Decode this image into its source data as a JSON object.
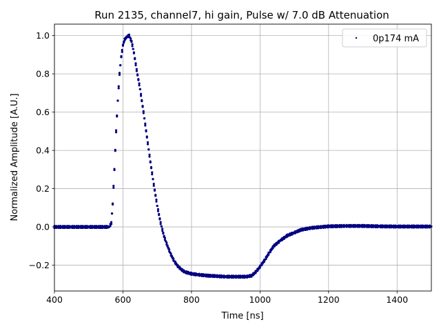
{
  "chart_data": {
    "type": "scatter",
    "title": "Run 2135, channel7, hi gain, Pulse w/ 7.0 dB Attenuation",
    "xlabel": "Time [ns]",
    "ylabel": "Normalized Amplitude [A.U.]",
    "xlim": [
      400,
      1500
    ],
    "ylim": [
      -0.335,
      1.06
    ],
    "xticks": [
      400,
      600,
      800,
      1000,
      1200,
      1400
    ],
    "yticks": [
      -0.2,
      0.0,
      0.2,
      0.4,
      0.6,
      0.8,
      1.0
    ],
    "xtick_labels": [
      "400",
      "600",
      "800",
      "1000",
      "1200",
      "1400"
    ],
    "ytick_labels": [
      "−0.2",
      "0.0",
      "0.2",
      "0.4",
      "0.6",
      "0.8",
      "1.0"
    ],
    "grid": true,
    "legend_position": "top-right",
    "marker_color": "#000080",
    "series": [
      {
        "name": "0p174 mA",
        "points": [
          [
            400,
            0.0
          ],
          [
            450,
            0.0
          ],
          [
            500,
            0.0
          ],
          [
            540,
            0.0
          ],
          [
            560,
            0.0
          ],
          [
            566,
            0.02
          ],
          [
            570,
            0.12
          ],
          [
            575,
            0.3
          ],
          [
            580,
            0.5
          ],
          [
            585,
            0.66
          ],
          [
            590,
            0.8
          ],
          [
            595,
            0.89
          ],
          [
            600,
            0.95
          ],
          [
            605,
            0.98
          ],
          [
            612,
            0.995
          ],
          [
            618,
            1.0
          ],
          [
            625,
            0.97
          ],
          [
            632,
            0.91
          ],
          [
            640,
            0.82
          ],
          [
            650,
            0.72
          ],
          [
            660,
            0.6
          ],
          [
            670,
            0.47
          ],
          [
            680,
            0.34
          ],
          [
            690,
            0.22
          ],
          [
            700,
            0.11
          ],
          [
            710,
            0.02
          ],
          [
            720,
            -0.05
          ],
          [
            730,
            -0.1
          ],
          [
            740,
            -0.145
          ],
          [
            750,
            -0.18
          ],
          [
            760,
            -0.205
          ],
          [
            770,
            -0.222
          ],
          [
            780,
            -0.235
          ],
          [
            800,
            -0.245
          ],
          [
            820,
            -0.25
          ],
          [
            850,
            -0.255
          ],
          [
            880,
            -0.258
          ],
          [
            900,
            -0.26
          ],
          [
            930,
            -0.26
          ],
          [
            960,
            -0.26
          ],
          [
            975,
            -0.255
          ],
          [
            985,
            -0.24
          ],
          [
            995,
            -0.22
          ],
          [
            1005,
            -0.195
          ],
          [
            1015,
            -0.17
          ],
          [
            1025,
            -0.14
          ],
          [
            1040,
            -0.1
          ],
          [
            1060,
            -0.07
          ],
          [
            1080,
            -0.045
          ],
          [
            1100,
            -0.03
          ],
          [
            1120,
            -0.015
          ],
          [
            1150,
            -0.005
          ],
          [
            1180,
            0.0
          ],
          [
            1200,
            0.003
          ],
          [
            1250,
            0.005
          ],
          [
            1300,
            0.005
          ],
          [
            1350,
            0.003
          ],
          [
            1400,
            0.002
          ],
          [
            1450,
            0.002
          ],
          [
            1500,
            0.002
          ]
        ]
      }
    ]
  }
}
